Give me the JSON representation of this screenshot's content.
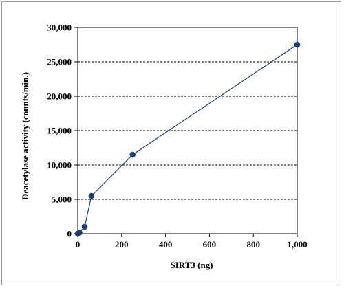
{
  "chart_data": {
    "type": "line",
    "title": "",
    "xlabel": "SIRT3 (ng)",
    "ylabel": "Deacetylase activity (counts/min.)",
    "xlim": [
      0,
      1000
    ],
    "ylim": [
      0,
      30000
    ],
    "x_ticks": [
      0,
      200,
      400,
      600,
      800,
      1000
    ],
    "x_tick_labels": [
      "0",
      "200",
      "400",
      "600",
      "800",
      "1,000"
    ],
    "y_ticks": [
      0,
      5000,
      10000,
      15000,
      20000,
      25000,
      30000
    ],
    "y_tick_labels": [
      "0",
      "5,000",
      "10,000",
      "15,000",
      "20,000",
      "25,000",
      "30,000"
    ],
    "grid": "horizontal dashed",
    "legend": "none",
    "series": [
      {
        "x": [
          0,
          7.8,
          31.3,
          62.5,
          250,
          1000
        ],
        "y": [
          0,
          150,
          1000,
          5500,
          11500,
          27500
        ],
        "color": "#1f3a6b",
        "marker": "filled-circle"
      }
    ]
  }
}
